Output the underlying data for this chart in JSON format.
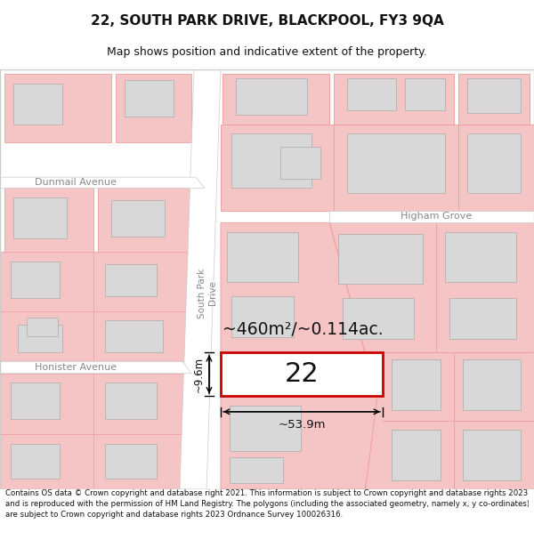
{
  "title": "22, SOUTH PARK DRIVE, BLACKPOOL, FY3 9QA",
  "subtitle": "Map shows position and indicative extent of the property.",
  "footer": "Contains OS data © Crown copyright and database right 2021. This information is subject to Crown copyright and database rights 2023 and is reproduced with the permission of HM Land Registry. The polygons (including the associated geometry, namely x, y co-ordinates) are subject to Crown copyright and database rights 2023 Ordnance Survey 100026316.",
  "bg_color": "#ffffff",
  "map_bg": "#ffffff",
  "plot_fill": "#f5c5c5",
  "plot_edge": "#e05050",
  "plot_edge_thin": "#f0a0a0",
  "highlight_fill": "#ffffff",
  "highlight_edge": "#cc0000",
  "building_fill": "#d8d8d8",
  "building_edge": "#aaaaaa",
  "road_fill": "#ffffff",
  "road_label_color": "#888888",
  "text_dark": "#111111",
  "street_label": "South Park",
  "street_label2": "Drive",
  "label_dunmail": "Dunmail Avenue",
  "label_honister": "Honister Avenue",
  "label_higham": "Higham Grove",
  "label_22": "22",
  "area_label": "~460m²/~0.114ac.",
  "width_label": "~53.9m",
  "depth_label": "~9.6m",
  "title_fontsize": 11,
  "subtitle_fontsize": 9,
  "footer_fontsize": 6.2
}
